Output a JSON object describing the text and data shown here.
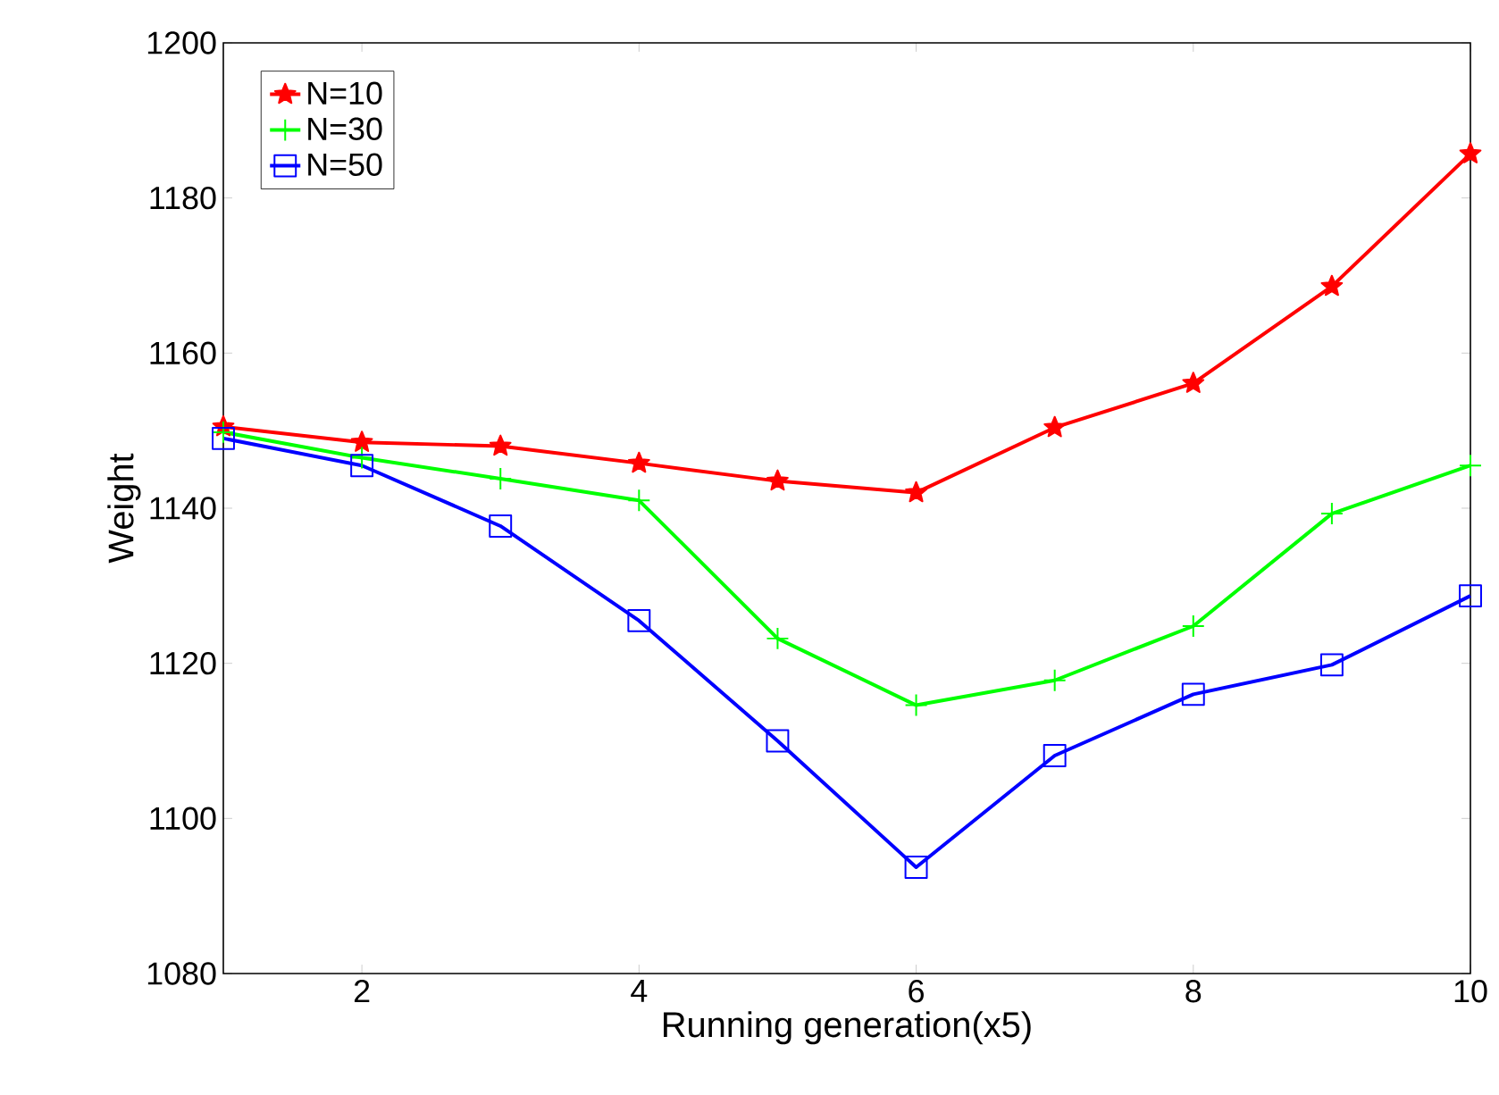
{
  "chart_data": {
    "type": "line",
    "xlabel": "Running generation(x5)",
    "ylabel": "Weight",
    "x": [
      1,
      2,
      3,
      4,
      5,
      6,
      7,
      8,
      9,
      10
    ],
    "series": [
      {
        "name": "N=10",
        "color": "#ff0000",
        "marker": "star",
        "values": [
          1150.5,
          1148.5,
          1148,
          1145.8,
          1143.5,
          1142,
          1150.4,
          1156.1,
          1168.6,
          1185.7
        ]
      },
      {
        "name": "N=30",
        "color": "#00ff00",
        "marker": "cross",
        "values": [
          1149.8,
          1146.5,
          1143.8,
          1141,
          1123.2,
          1114.6,
          1117.8,
          1124.8,
          1139.3,
          1145.5
        ]
      },
      {
        "name": "N=50",
        "color": "#0000ff",
        "marker": "square",
        "values": [
          1149,
          1145.5,
          1137.7,
          1125.5,
          1110,
          1093.7,
          1108.1,
          1116,
          1119.8,
          1128.7
        ]
      }
    ],
    "xlim": [
      1,
      10
    ],
    "ylim": [
      1080,
      1200
    ],
    "xticks": [
      2,
      4,
      6,
      8,
      10
    ],
    "yticks": [
      1080,
      1100,
      1120,
      1140,
      1160,
      1180,
      1200
    ],
    "grid": false,
    "legend": "top left",
    "line_style": "solid"
  }
}
